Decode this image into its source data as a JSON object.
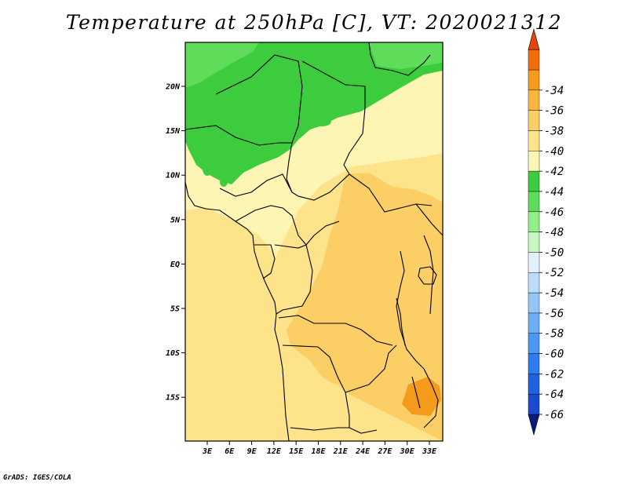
{
  "title": "Temperature at 250hPa [C], VT: 2020021312",
  "credit": "GrADS: IGES/COLA",
  "map": {
    "lon_ticks": [
      "3E",
      "6E",
      "9E",
      "12E",
      "15E",
      "18E",
      "21E",
      "24E",
      "27E",
      "30E",
      "33E"
    ],
    "lat_ticks": [
      "20N",
      "15N",
      "10N",
      "5N",
      "EQ",
      "5S",
      "10S",
      "15S"
    ]
  },
  "colorbar": {
    "colors": [
      "#0a1c7a",
      "#1a4ad0",
      "#1f63e2",
      "#2e7df0",
      "#4b97f5",
      "#6cadf6",
      "#93c5f8",
      "#bcdcfb",
      "#e2f1fd",
      "#c7f8bf",
      "#92ee86",
      "#5fdd5a",
      "#3ccc3e",
      "#fdf5b4",
      "#fde38a",
      "#fbcf66",
      "#f9b63e",
      "#f59b1c",
      "#ef6e0a",
      "#e5440a"
    ],
    "labels": [
      "-66",
      "-64",
      "-62",
      "-60",
      "-58",
      "-56",
      "-54",
      "-52",
      "-50",
      "-48",
      "-46",
      "-44",
      "-42",
      "-40",
      "-38",
      "-36",
      "-34"
    ]
  }
}
